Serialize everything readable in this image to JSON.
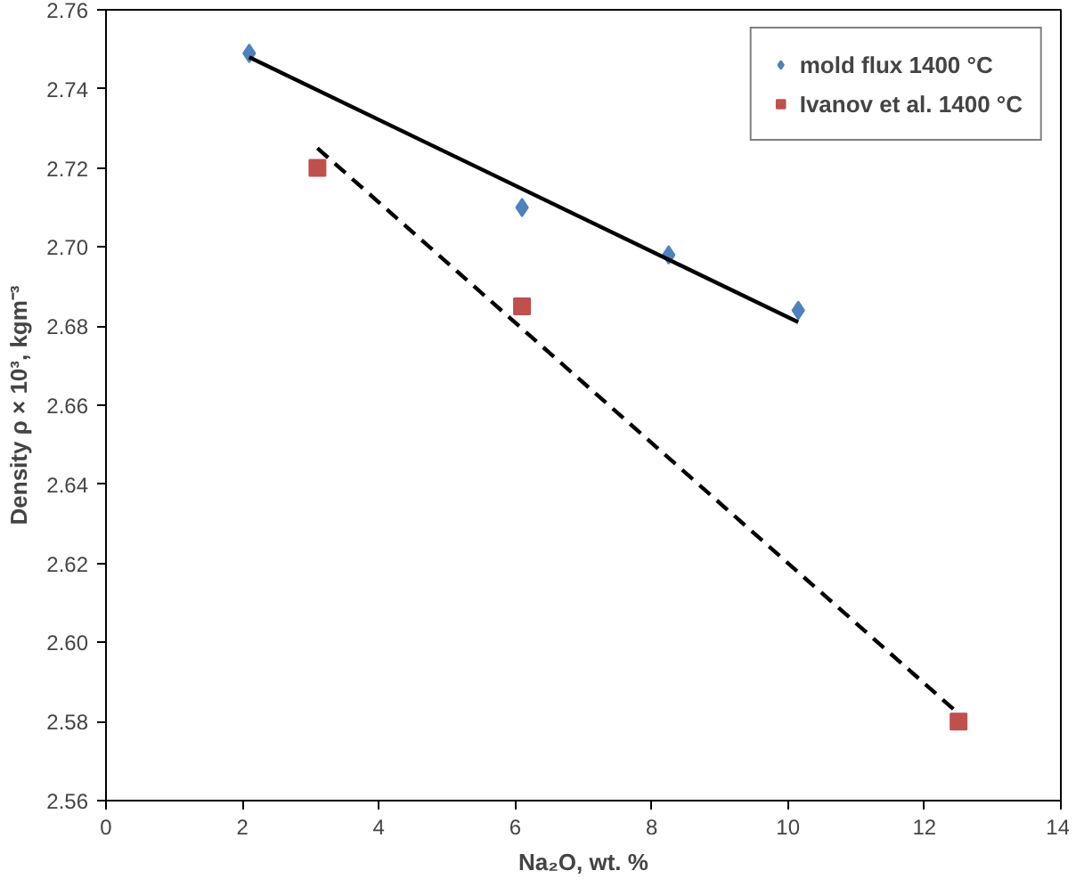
{
  "chart_data": {
    "type": "scatter",
    "xlabel": "Na₂O, wt. %",
    "ylabel": "Density ρ × 10³, kgm⁻³",
    "xlim": [
      0,
      14
    ],
    "xticks": [
      0,
      2,
      4,
      6,
      8,
      10,
      12,
      14
    ],
    "ylim": [
      2.56,
      2.76
    ],
    "yticks": [
      {
        "value": 2.56,
        "label": "2.56"
      },
      {
        "value": 2.58,
        "label": "2.58"
      },
      {
        "value": 2.6,
        "label": "2.60"
      },
      {
        "value": 2.62,
        "label": "2.62"
      },
      {
        "value": 2.64,
        "label": "2.64"
      },
      {
        "value": 2.66,
        "label": "2.66"
      },
      {
        "value": 2.68,
        "label": "2.68"
      },
      {
        "value": 2.7,
        "label": "2.70"
      },
      {
        "value": 2.72,
        "label": "2.72"
      },
      {
        "value": 2.74,
        "label": "2.74"
      },
      {
        "value": 2.76,
        "label": "2.76"
      }
    ],
    "grid": false,
    "legend": "top right",
    "series": [
      {
        "name": "mold flux 1400 °C",
        "color": "#4f81bd",
        "marker": "diamond",
        "x": [
          2.1,
          6.1,
          8.25,
          10.15
        ],
        "values": [
          2.749,
          2.71,
          2.698,
          2.684
        ]
      },
      {
        "name": "Ivanov et al. 1400 °C",
        "color": "#c0504d",
        "marker": "square",
        "x": [
          3.1,
          6.1,
          12.5
        ],
        "values": [
          2.72,
          2.685,
          2.58
        ]
      },
      {
        "type": "line",
        "color": "#000000",
        "line_style": "solid",
        "marker": "none",
        "x": [
          2.1,
          10.15
        ],
        "values": [
          2.748,
          2.681
        ]
      },
      {
        "type": "line",
        "color": "#000000",
        "line_style": "dashed",
        "marker": "none",
        "x": [
          3.1,
          12.5
        ],
        "values": [
          2.725,
          2.582
        ]
      }
    ]
  }
}
